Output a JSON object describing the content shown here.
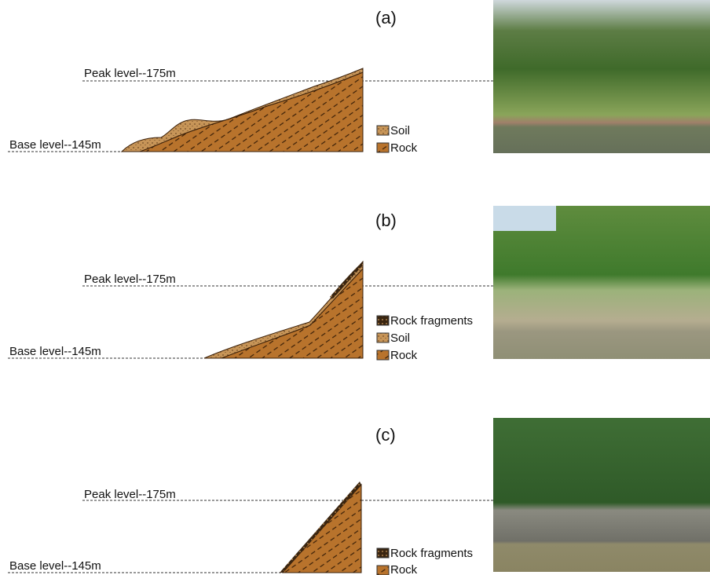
{
  "panels": [
    {
      "label": "(a)",
      "peak_level": "Peak level--175m",
      "base_level": "Base level--145m",
      "legend": [
        "Soil",
        "Rock"
      ]
    },
    {
      "label": "(b)",
      "peak_level": "Peak level--175m",
      "base_level": "Base level--145m",
      "legend": [
        "Rock fragments",
        "Soil",
        "Rock"
      ]
    },
    {
      "label": "(c)",
      "peak_level": "Peak level--175m",
      "base_level": "Base level--145m",
      "legend": [
        "Rock fragments",
        "Rock"
      ]
    }
  ]
}
